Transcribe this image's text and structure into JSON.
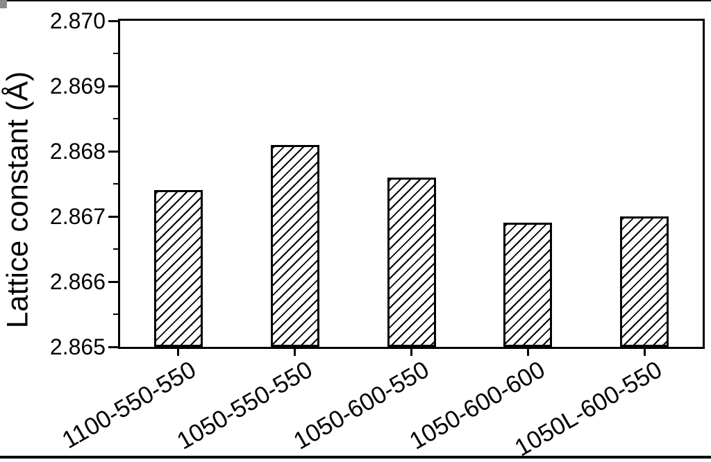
{
  "figure": {
    "background_color": "#ffffff",
    "foreground_color": "#000000",
    "top_edge_line": true,
    "bottom_edge_line": true
  },
  "chart_data": {
    "type": "bar",
    "title": "",
    "categories": [
      "1100-550-550",
      "1050-550-550",
      "1050-600-550",
      "1050-600-600",
      "1050L-600-550"
    ],
    "values": [
      2.8674,
      2.8681,
      2.8676,
      2.8669,
      2.867
    ],
    "xlabel": "",
    "ylabel": "Lattice constant (Å)",
    "ylim": [
      2.865,
      2.87
    ],
    "ytick_step": 0.001,
    "ytick_minor_step": 0.0005,
    "ytick_labels": [
      "2.865",
      "2.866",
      "2.867",
      "2.868",
      "2.869",
      "2.870"
    ],
    "grid": false,
    "legend": null,
    "frame": "full-box",
    "x_label_rotation_deg": -30,
    "bar_style": {
      "fill": "#ffffff",
      "hatch": "forward-diagonal",
      "edge_color": "#000000"
    }
  }
}
